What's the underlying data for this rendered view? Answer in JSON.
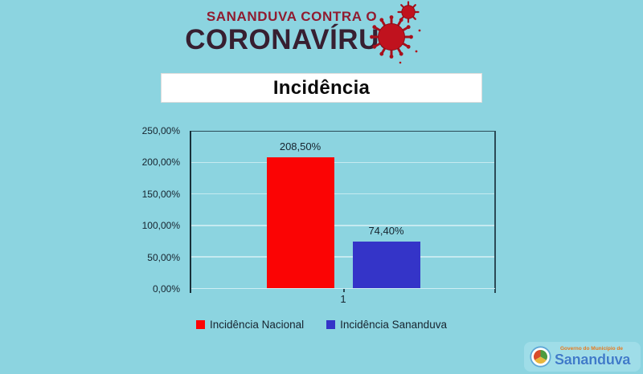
{
  "colors": {
    "page_bg": "#8CD4E0",
    "header_line1": "#901C30",
    "header_line2": "#371F31",
    "virus_red": "#C0121E",
    "title_text": "#0B0B0B",
    "chart_text": "#16232E",
    "axis": "#2B4A56",
    "gridline": "#C6EAF0",
    "bar_national_red": "#FB0404",
    "bar_sananduva_blue": "#3434C8",
    "logo_panel_bg": "#9FDDE8",
    "logo_orange": "#E8791C",
    "logo_blue": "#3E7CC9"
  },
  "header": {
    "line1": "SANANDUVA CONTRA O",
    "line2": "CORONAVÍRUS"
  },
  "title_box": {
    "text": "Incidência"
  },
  "chart_data": {
    "type": "bar",
    "title": "Incidência",
    "categories": [
      "1"
    ],
    "series": [
      {
        "name": "Incidência Nacional",
        "values": [
          208.5
        ],
        "data_labels": [
          "208,50%"
        ],
        "color": "#FB0404"
      },
      {
        "name": "Incidência Sananduva",
        "values": [
          74.4
        ],
        "data_labels": [
          "74,40%"
        ],
        "color": "#3434C8"
      }
    ],
    "ylim": [
      0,
      250
    ],
    "ytick_labels": [
      "0,00%",
      "50,00%",
      "100,00%",
      "150,00%",
      "200,00%",
      "250,00%"
    ],
    "grid": true,
    "legend_position": "bottom"
  },
  "footer_logo": {
    "line1": "Governo do Município de",
    "line2": "Sananduva"
  }
}
